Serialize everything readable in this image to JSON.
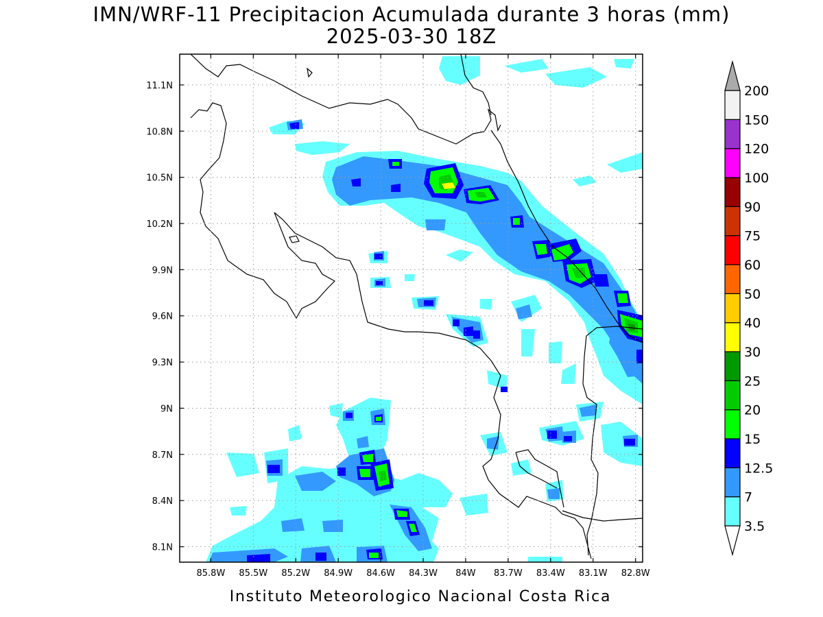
{
  "title": {
    "line1": "IMN/WRF-11 Precipitacion Acumulada durante 3 horas (mm)",
    "line2": "2025-03-30 18Z"
  },
  "footer": "Instituto Meteorologico Nacional Costa Rica",
  "map": {
    "lon_range": [
      -86.02,
      -82.75
    ],
    "lat_range": [
      8.0,
      11.3
    ],
    "grid": true,
    "lon_ticks": [
      {
        "value": -85.8,
        "label": "85.8W"
      },
      {
        "value": -85.5,
        "label": "85.5W"
      },
      {
        "value": -85.2,
        "label": "85.2W"
      },
      {
        "value": -84.9,
        "label": "84.9W"
      },
      {
        "value": -84.6,
        "label": "84.6W"
      },
      {
        "value": -84.3,
        "label": "84.3W"
      },
      {
        "value": -84.0,
        "label": "84W"
      },
      {
        "value": -83.7,
        "label": "83.7W"
      },
      {
        "value": -83.4,
        "label": "83.4W"
      },
      {
        "value": -83.1,
        "label": "83.1W"
      },
      {
        "value": -82.8,
        "label": "82.8W"
      }
    ],
    "lat_ticks": [
      {
        "value": 8.1,
        "label": "8.1N"
      },
      {
        "value": 8.4,
        "label": "8.4N"
      },
      {
        "value": 8.7,
        "label": "8.7N"
      },
      {
        "value": 9.0,
        "label": "9N"
      },
      {
        "value": 9.3,
        "label": "9.3N"
      },
      {
        "value": 9.6,
        "label": "9.6N"
      },
      {
        "value": 9.9,
        "label": "9.9N"
      },
      {
        "value": 10.2,
        "label": "10.2N"
      },
      {
        "value": 10.5,
        "label": "10.5N"
      },
      {
        "value": 10.8,
        "label": "10.8N"
      },
      {
        "value": 11.1,
        "label": "11.1N"
      }
    ]
  },
  "colorbar": {
    "levels": [
      "3.5",
      "7",
      "12.5",
      "15",
      "20",
      "25",
      "30",
      "40",
      "50",
      "60",
      "75",
      "90",
      "100",
      "120",
      "150",
      "200"
    ],
    "colors": [
      "#ffffff",
      "#66ffff",
      "#3399ff",
      "#0000ff",
      "#00ff00",
      "#00cc00",
      "#009900",
      "#ffff00",
      "#ffcc00",
      "#ff6600",
      "#ff0000",
      "#cc3300",
      "#990000",
      "#ff00ff",
      "#9933cc",
      "#f2f2f2",
      "#aaaaaa"
    ]
  }
}
